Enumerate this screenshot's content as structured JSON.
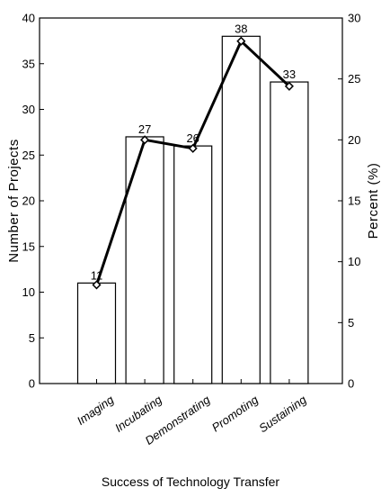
{
  "chart_data": {
    "type": "bar",
    "categories": [
      "Imaging",
      "Incubating",
      "Demonstrating",
      "Promoting",
      "Sustaining"
    ],
    "series": [
      {
        "type": "bar",
        "axis": "left",
        "values": [
          11,
          27,
          26,
          38,
          33
        ]
      },
      {
        "type": "line",
        "axis": "right",
        "marker": "diamond",
        "values": [
          8.1,
          20.0,
          19.3,
          28.1,
          24.4
        ]
      }
    ],
    "data_labels": [
      "11",
      "27",
      "26",
      "38",
      "33"
    ],
    "xlabel": "Success of Technology Transfer",
    "ylabel": "Number of Projects",
    "y2label": "Percent (%)",
    "ylim": [
      0,
      40
    ],
    "y2lim": [
      0,
      30
    ],
    "yticks": [
      "0",
      "5",
      "10",
      "15",
      "20",
      "25",
      "30",
      "35",
      "40"
    ],
    "y2ticks": [
      "0",
      "5",
      "10",
      "15",
      "20",
      "25",
      "30"
    ],
    "grid": false,
    "legend": "none"
  }
}
